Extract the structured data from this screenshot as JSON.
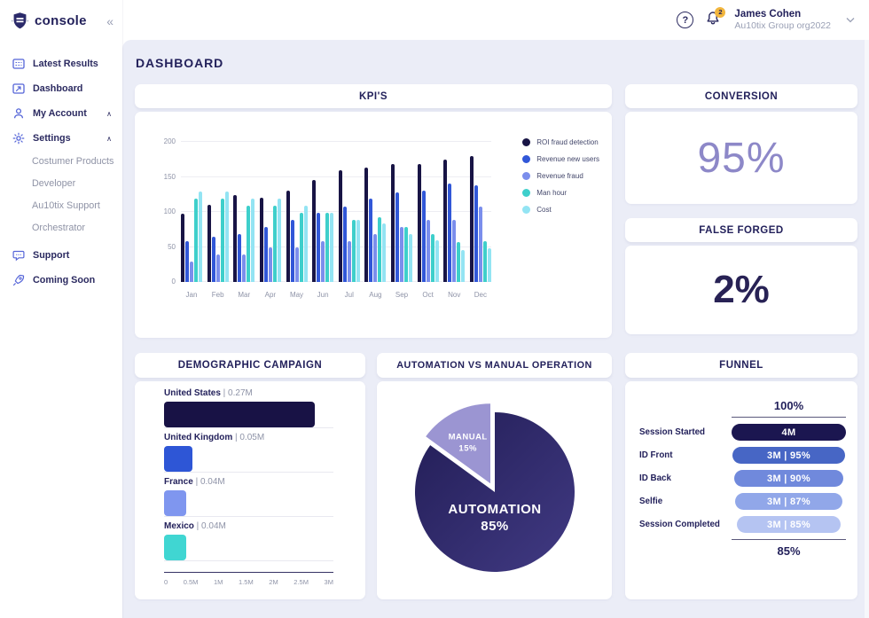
{
  "brand": {
    "name": "console",
    "collapse_icon": "«"
  },
  "sidebar": {
    "items": [
      {
        "label": "Latest Results",
        "icon": "latest-results-icon"
      },
      {
        "label": "Dashboard",
        "icon": "dashboard-icon"
      },
      {
        "label": "My Account",
        "icon": "user-icon",
        "chevron": "∧"
      },
      {
        "label": "Settings",
        "icon": "gear-icon",
        "chevron": "∧"
      }
    ],
    "settings_subitems": [
      "Costumer Products",
      "Developer",
      "Au10tix Support",
      "Orchestrator"
    ],
    "bottom_items": [
      {
        "label": "Support",
        "icon": "chat-icon"
      },
      {
        "label": "Coming Soon",
        "icon": "rocket-icon"
      }
    ]
  },
  "header": {
    "help_icon": "?",
    "notification_count": "2",
    "user_name": "James Cohen",
    "user_org": "Au10tix Group org2022"
  },
  "page_title": "DASHBOARD",
  "cards": {
    "kpi": {
      "title": "KPI'S"
    },
    "conversion": {
      "title": "CONVERSION",
      "value": "95%"
    },
    "false_forged": {
      "title": "FALSE FORGED",
      "value": "2%"
    },
    "demographic": {
      "title": "DEMOGRAPHIC CAMPAIGN"
    },
    "automation": {
      "title": "AUTOMATION VS MANUAL OPERATION"
    },
    "funnel": {
      "title": "FUNNEL"
    }
  },
  "colors": {
    "accent_navy": "#23215b",
    "purple": "#8d88c8",
    "background": "#ebedf7",
    "badge_yellow": "#f2b63e"
  },
  "chart_data": [
    {
      "id": "kpi",
      "type": "bar",
      "title": "KPI'S",
      "categories": [
        "Jan",
        "Feb",
        "Mar",
        "Apr",
        "May",
        "Jun",
        "Jul",
        "Aug",
        "Sep",
        "Oct",
        "Nov",
        "Dec"
      ],
      "series": [
        {
          "name": "ROI fraud detection",
          "color": "#181445",
          "values": [
            98,
            110,
            124,
            120,
            130,
            145,
            160,
            163,
            168,
            168,
            175,
            180
          ]
        },
        {
          "name": "Revenue new users",
          "color": "#3157d8",
          "values": [
            58,
            64,
            69,
            79,
            89,
            99,
            108,
            119,
            128,
            130,
            140,
            138
          ]
        },
        {
          "name": "Revenue fraud",
          "color": "#7b8eec",
          "values": [
            29,
            39,
            39,
            49,
            49,
            58,
            58,
            69,
            78,
            88,
            88,
            107
          ]
        },
        {
          "name": "Man hour",
          "color": "#3ecfcb",
          "values": [
            119,
            119,
            109,
            109,
            99,
            99,
            88,
            93,
            78,
            68,
            57,
            58
          ]
        },
        {
          "name": "Cost",
          "color": "#93e4f3",
          "values": [
            129,
            129,
            119,
            119,
            109,
            99,
            88,
            83,
            68,
            59,
            45,
            48
          ]
        }
      ],
      "yticks": [
        0,
        50,
        100,
        150,
        200
      ],
      "ylim": [
        0,
        200
      ],
      "grid": true,
      "legend_position": "right"
    },
    {
      "id": "demographic",
      "type": "bar",
      "orientation": "horizontal",
      "title": "DEMOGRAPHIC CAMPAIGN",
      "items": [
        {
          "label": "United States",
          "value_label": "0.27M",
          "bar_pct": 89,
          "color": "#181245"
        },
        {
          "label": "United Kingdom",
          "value_label": "0.05M",
          "bar_pct": 16.7,
          "color": "#2e56d6"
        },
        {
          "label": "France",
          "value_label": "0.04M",
          "bar_pct": 13.3,
          "color": "#7f96ef"
        },
        {
          "label": "Mexico",
          "value_label": "0.04M",
          "bar_pct": 13.3,
          "color": "#40d6d2"
        }
      ],
      "xticks": [
        "0",
        "0.5M",
        "1M",
        "1.5M",
        "2M",
        "2.5M",
        "3M"
      ]
    },
    {
      "id": "automation_pie",
      "type": "pie",
      "title": "AUTOMATION VS MANUAL OPERATION",
      "slices": [
        {
          "label": "AUTOMATION",
          "pct": 85,
          "color": "#2d2767"
        },
        {
          "label": "MANUAL",
          "pct": 15,
          "color": "#9b95d2",
          "exploded": true
        }
      ]
    },
    {
      "id": "funnel",
      "type": "table",
      "title": "FUNNEL",
      "top_label": "100%",
      "bottom_label": "85%",
      "steps": [
        {
          "label": "Session Started",
          "value": "4M",
          "color": "#1b1650"
        },
        {
          "label": "ID Front",
          "value": "3M | 95%",
          "color": "#4766c5"
        },
        {
          "label": "ID Back",
          "value": "3M | 90%",
          "color": "#7089dc"
        },
        {
          "label": "Selfie",
          "value": "3M | 87%",
          "color": "#91a7e9"
        },
        {
          "label": "Session Completed",
          "value": "3M | 85%",
          "color": "#b5c4f2"
        }
      ]
    }
  ]
}
